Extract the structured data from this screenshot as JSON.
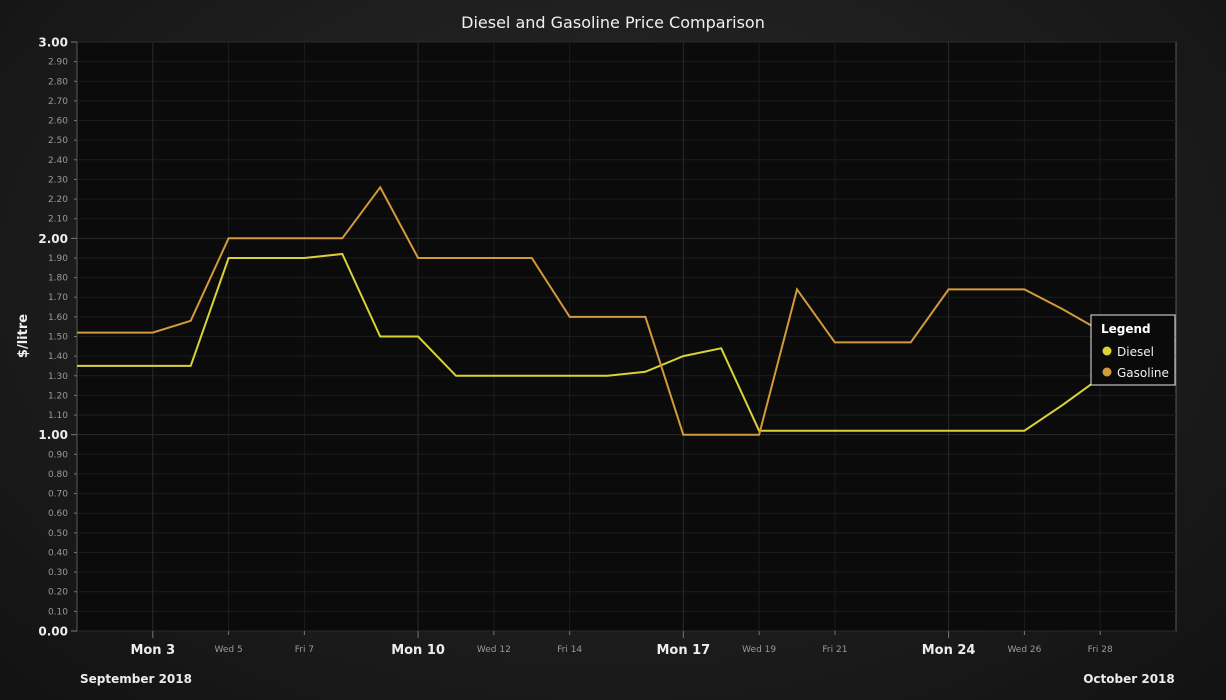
{
  "chart_data": {
    "type": "line",
    "title": "Diesel and Gasoline Price Comparison",
    "xlabel": "",
    "ylabel": "$/litre",
    "x_type": "date",
    "xlim": [
      "2018-09-01",
      "2018-09-30"
    ],
    "ylim": [
      0,
      3
    ],
    "y_ticks": [
      "0.00",
      "0.10",
      "0.20",
      "0.30",
      "0.40",
      "0.50",
      "0.60",
      "0.70",
      "0.80",
      "0.90",
      "1.00",
      "1.10",
      "1.20",
      "1.30",
      "1.40",
      "1.50",
      "1.60",
      "1.70",
      "1.80",
      "1.90",
      "2.00",
      "2.10",
      "2.20",
      "2.30",
      "2.40",
      "2.50",
      "2.60",
      "2.70",
      "2.80",
      "2.90",
      "3.00"
    ],
    "y_major_ticks": [
      "0.00",
      "1.00",
      "2.00",
      "3.00"
    ],
    "x_ticks": [
      {
        "label": "Mon 3",
        "date": "2018-09-03",
        "major": true
      },
      {
        "label": "Wed 5",
        "date": "2018-09-05",
        "major": false
      },
      {
        "label": "Fri 7",
        "date": "2018-09-07",
        "major": false
      },
      {
        "label": "Mon 10",
        "date": "2018-09-10",
        "major": true
      },
      {
        "label": "Wed 12",
        "date": "2018-09-12",
        "major": false
      },
      {
        "label": "Fri 14",
        "date": "2018-09-14",
        "major": false
      },
      {
        "label": "Mon 17",
        "date": "2018-09-17",
        "major": true
      },
      {
        "label": "Wed 19",
        "date": "2018-09-19",
        "major": false
      },
      {
        "label": "Fri 21",
        "date": "2018-09-21",
        "major": false
      },
      {
        "label": "Mon 24",
        "date": "2018-09-24",
        "major": true
      },
      {
        "label": "Wed 26",
        "date": "2018-09-26",
        "major": false
      },
      {
        "label": "Fri 28",
        "date": "2018-09-28",
        "major": false
      }
    ],
    "month_labels": {
      "left": "September 2018",
      "right": "October 2018"
    },
    "grid": true,
    "legend": {
      "title": "Legend",
      "position": "right"
    },
    "series": [
      {
        "name": "Diesel",
        "color": "#d9d23a",
        "x": [
          "2018-09-01",
          "2018-09-02",
          "2018-09-03",
          "2018-09-04",
          "2018-09-05",
          "2018-09-06",
          "2018-09-07",
          "2018-09-08",
          "2018-09-09",
          "2018-09-10",
          "2018-09-11",
          "2018-09-12",
          "2018-09-13",
          "2018-09-14",
          "2018-09-15",
          "2018-09-16",
          "2018-09-17",
          "2018-09-18",
          "2018-09-19",
          "2018-09-20",
          "2018-09-21",
          "2018-09-22",
          "2018-09-23",
          "2018-09-24",
          "2018-09-25",
          "2018-09-26",
          "2018-09-27",
          "2018-09-28"
        ],
        "values": [
          1.35,
          1.35,
          1.35,
          1.35,
          1.9,
          1.9,
          1.9,
          1.92,
          1.5,
          1.5,
          1.3,
          1.3,
          1.3,
          1.3,
          1.3,
          1.32,
          1.4,
          1.44,
          1.02,
          1.02,
          1.02,
          1.02,
          1.02,
          1.02,
          1.02,
          1.02,
          1.15,
          1.29
        ]
      },
      {
        "name": "Gasoline",
        "color": "#d29a3a",
        "x": [
          "2018-09-01",
          "2018-09-02",
          "2018-09-03",
          "2018-09-04",
          "2018-09-05",
          "2018-09-06",
          "2018-09-07",
          "2018-09-08",
          "2018-09-09",
          "2018-09-10",
          "2018-09-11",
          "2018-09-12",
          "2018-09-13",
          "2018-09-14",
          "2018-09-15",
          "2018-09-16",
          "2018-09-17",
          "2018-09-18",
          "2018-09-19",
          "2018-09-20",
          "2018-09-21",
          "2018-09-22",
          "2018-09-23",
          "2018-09-24",
          "2018-09-25",
          "2018-09-26",
          "2018-09-27",
          "2018-09-28"
        ],
        "values": [
          1.52,
          1.52,
          1.52,
          1.58,
          2.0,
          2.0,
          2.0,
          2.0,
          2.26,
          1.9,
          1.9,
          1.9,
          1.9,
          1.6,
          1.6,
          1.6,
          1.0,
          1.0,
          1.0,
          1.74,
          1.47,
          1.47,
          1.47,
          1.74,
          1.74,
          1.74,
          1.64,
          1.53
        ]
      }
    ]
  }
}
